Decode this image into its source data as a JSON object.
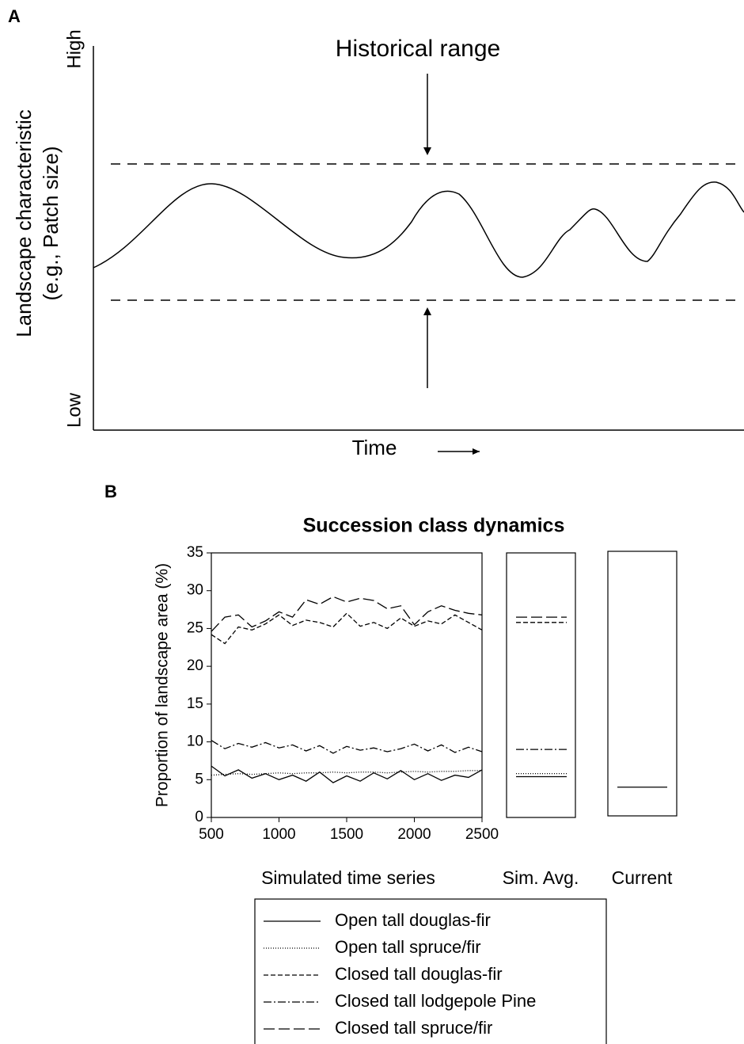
{
  "panel_a": {
    "panel_label": "A",
    "title": "Historical range",
    "high_label": "High",
    "low_label": "Low",
    "ylabel_lines": [
      "Landscape characteristic",
      "(e.g., Patch size)"
    ],
    "xlabel": "Time"
  },
  "chart_data": {
    "type": "line",
    "panel_label": "B",
    "title": "Succession class dynamics",
    "xlabel": "Simulated time series",
    "ylabel": "Proportion of landscape area (%)",
    "x": [
      500,
      600,
      700,
      800,
      900,
      1000,
      1100,
      1200,
      1300,
      1400,
      1500,
      1600,
      1700,
      1800,
      1900,
      2000,
      2100,
      2200,
      2300,
      2400,
      2500
    ],
    "xlim": [
      500,
      2500
    ],
    "xticks": [
      500,
      1000,
      1500,
      2000,
      2500
    ],
    "ylim": [
      0,
      35
    ],
    "yticks": [
      0,
      5,
      10,
      15,
      20,
      25,
      30,
      35
    ],
    "series": [
      {
        "name": "Open tall douglas-fir",
        "color": "#000000",
        "dash": "none",
        "values": [
          6.8,
          5.5,
          6.3,
          5.2,
          5.8,
          5.0,
          5.6,
          4.8,
          6.0,
          4.6,
          5.5,
          4.8,
          5.9,
          5.1,
          6.2,
          5.0,
          5.8,
          4.9,
          5.6,
          5.3,
          6.3
        ]
      },
      {
        "name": "Open tall spruce/fir",
        "color": "#000000",
        "dash": "1 2",
        "values": [
          5.6,
          5.7,
          5.8,
          5.7,
          5.8,
          5.9,
          5.8,
          5.9,
          5.9,
          6.0,
          5.9,
          6.0,
          6.0,
          5.9,
          6.0,
          6.1,
          6.0,
          6.1,
          6.1,
          6.2,
          6.2
        ]
      },
      {
        "name": "Closed tall douglas-fir",
        "color": "#000000",
        "dash": "6 3",
        "values": [
          24.2,
          23.0,
          25.2,
          24.8,
          25.6,
          26.8,
          25.4,
          26.1,
          25.8,
          25.2,
          27.0,
          25.3,
          25.8,
          25.0,
          26.4,
          25.3,
          26.0,
          25.6,
          26.8,
          25.8,
          24.8
        ]
      },
      {
        "name": "Closed tall lodgepole Pine",
        "color": "#000000",
        "dash": "10 3 2 3",
        "values": [
          10.2,
          9.1,
          9.8,
          9.3,
          9.9,
          9.2,
          9.6,
          8.8,
          9.5,
          8.5,
          9.4,
          8.9,
          9.2,
          8.7,
          9.1,
          9.7,
          8.8,
          9.6,
          8.6,
          9.3,
          8.7
        ]
      },
      {
        "name": "Closed tall spruce/fir",
        "color": "#000000",
        "dash": "14 5",
        "values": [
          24.6,
          26.5,
          26.8,
          25.2,
          26.0,
          27.2,
          26.5,
          28.8,
          28.2,
          29.2,
          28.5,
          29.0,
          28.7,
          27.6,
          28.0,
          25.5,
          27.2,
          28.0,
          27.4,
          27.0,
          26.8
        ]
      }
    ],
    "sim_avg": {
      "label": "Sim. Avg.",
      "values": [
        5.4,
        5.8,
        25.8,
        9.0,
        26.5
      ]
    },
    "current": {
      "label": "Current",
      "values": [
        3.8,
        null,
        null,
        null,
        null
      ]
    }
  }
}
